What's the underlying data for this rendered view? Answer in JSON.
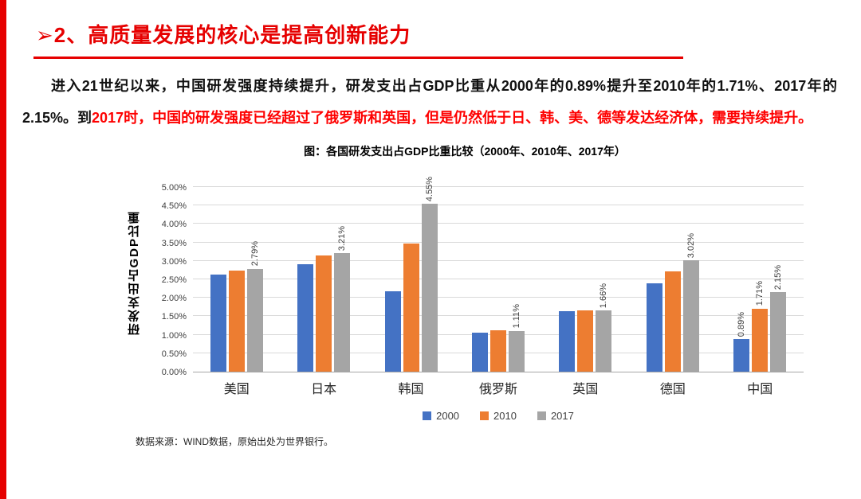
{
  "colors": {
    "accent_red": "#e60000",
    "body_red": "#fe0000",
    "axis_line": "#a6a6a6",
    "gridline": "#d9d9d9"
  },
  "header": {
    "bullet": "➢",
    "title": "2、高质量发展的核心是提高创新能力"
  },
  "paragraph": {
    "segment_black": "进入21世纪以来，中国研发强度持续提升，研发支出占GDP比重从2000年的0.89%提升至2010年的1.71%、2017年的2.15%。到",
    "segment_red": "2017时，中国的研发强度已经超过了俄罗斯和英国，但是仍然低于日、韩、美、德等发达经济体，需要持续提升。"
  },
  "chart_data": {
    "type": "bar",
    "title": "图：各国研发支出占GDP比重比较（2000年、2010年、2017年）",
    "ylabel": "研发支出占GDP比重",
    "xlabel": "",
    "categories": [
      "美国",
      "日本",
      "韩国",
      "俄罗斯",
      "英国",
      "德国",
      "中国"
    ],
    "series": [
      {
        "name": "2000",
        "color": "#4472C4",
        "values": [
          2.62,
          2.91,
          2.18,
          1.05,
          1.63,
          2.39,
          0.89
        ],
        "labels": [
          null,
          null,
          null,
          null,
          null,
          null,
          "0.89%"
        ]
      },
      {
        "name": "2010",
        "color": "#ED7D31",
        "values": [
          2.74,
          3.14,
          3.47,
          1.13,
          1.67,
          2.71,
          1.71
        ],
        "labels": [
          null,
          null,
          null,
          null,
          null,
          null,
          "1.71%"
        ]
      },
      {
        "name": "2017",
        "color": "#A5A5A5",
        "values": [
          2.79,
          3.21,
          4.55,
          1.11,
          1.66,
          3.02,
          2.15
        ],
        "labels": [
          "2.79%",
          "3.21%",
          "4.55%",
          "1.11%",
          "1.66%",
          "3.02%",
          "2.15%"
        ]
      }
    ],
    "ylim": [
      0,
      5
    ],
    "ytick_step": 0.5,
    "ytick_labels": [
      "0.00%",
      "0.50%",
      "1.00%",
      "1.50%",
      "2.00%",
      "2.50%",
      "3.00%",
      "3.50%",
      "4.00%",
      "4.50%",
      "5.00%"
    ],
    "legend": [
      "2000",
      "2010",
      "2017"
    ],
    "legend_position": "bottom",
    "grid": true
  },
  "footer": {
    "source": "数据来源：WIND数据，原始出处为世界银行。"
  }
}
